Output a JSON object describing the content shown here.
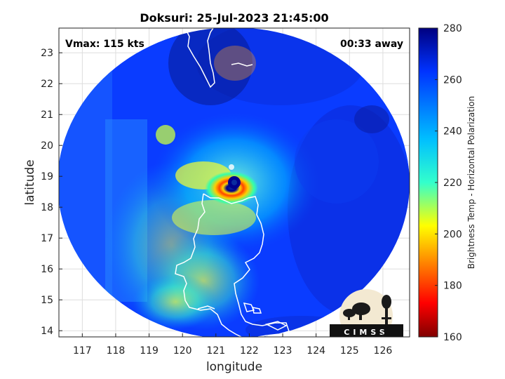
{
  "chart_data": {
    "type": "heatmap",
    "title": "Doksuri: 25-Jul-2023 21:45:00",
    "xlabel": "longitude",
    "ylabel": "latitude",
    "xlim": [
      116.3,
      126.8
    ],
    "ylim": [
      13.8,
      23.8
    ],
    "xticks": [
      117,
      118,
      119,
      120,
      121,
      122,
      123,
      124,
      125,
      126
    ],
    "yticks": [
      14,
      15,
      16,
      17,
      18,
      19,
      20,
      21,
      22,
      23
    ],
    "grid": true,
    "annotations": {
      "vmax": "Vmax: 115 kts",
      "away": "00:33 away"
    },
    "colorbar": {
      "label": "Brightness Temp - Horizontal Polarization",
      "range": [
        160,
        280
      ],
      "ticks": [
        160,
        180,
        200,
        220,
        240,
        260,
        280
      ],
      "colormap": "jet"
    },
    "eye_center": {
      "lon": 121.5,
      "lat": 18.8
    },
    "swath_center": {
      "lon": 121.5,
      "lat": 18.7
    },
    "logo_text": "CIMSS"
  },
  "colors": {
    "background_tb": "#0a3cff",
    "coastline": "#ffffff",
    "axis": "#222222"
  }
}
